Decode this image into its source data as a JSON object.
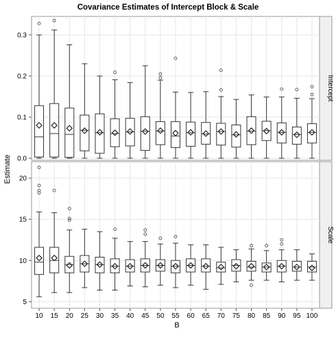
{
  "chart_data": {
    "type": "box",
    "title": "Covariance Estimates of Intercept Block & Scale",
    "xlabel": "B",
    "ylabel": "Estimate",
    "categories": [
      "10",
      "15",
      "20",
      "25",
      "30",
      "35",
      "40",
      "45",
      "50",
      "55",
      "60",
      "65",
      "70",
      "75",
      "80",
      "85",
      "90",
      "95",
      "100"
    ],
    "panels": [
      {
        "name": "Intercept",
        "ylim": [
          -0.005,
          0.345
        ],
        "yticks": [
          0.0,
          0.1,
          0.2,
          0.3
        ],
        "ytick_labels": [
          "0.0",
          "0.1",
          "0.2",
          "0.3"
        ],
        "boxes": [
          {
            "min": 0.0,
            "q1": 0.003,
            "median": 0.052,
            "q3": 0.128,
            "max": 0.3,
            "mean": 0.08,
            "outliers": [
              0.328
            ]
          },
          {
            "min": 0.0,
            "q1": 0.003,
            "median": 0.06,
            "q3": 0.133,
            "max": 0.312,
            "mean": 0.08,
            "outliers": [
              0.335
            ]
          },
          {
            "min": 0.0,
            "q1": 0.002,
            "median": 0.058,
            "q3": 0.122,
            "max": 0.276,
            "mean": 0.073,
            "outliers": []
          },
          {
            "min": 0.0,
            "q1": 0.018,
            "median": 0.068,
            "q3": 0.105,
            "max": 0.23,
            "mean": 0.067,
            "outliers": []
          },
          {
            "min": 0.0,
            "q1": 0.012,
            "median": 0.062,
            "q3": 0.108,
            "max": 0.2,
            "mean": 0.063,
            "outliers": []
          },
          {
            "min": 0.0,
            "q1": 0.028,
            "median": 0.06,
            "q3": 0.096,
            "max": 0.191,
            "mean": 0.062,
            "outliers": [
              0.209
            ]
          },
          {
            "min": 0.0,
            "q1": 0.03,
            "median": 0.064,
            "q3": 0.097,
            "max": 0.184,
            "mean": 0.065,
            "outliers": []
          },
          {
            "min": 0.0,
            "q1": 0.019,
            "median": 0.066,
            "q3": 0.101,
            "max": 0.225,
            "mean": 0.065,
            "outliers": []
          },
          {
            "min": 0.0,
            "q1": 0.033,
            "median": 0.066,
            "q3": 0.089,
            "max": 0.19,
            "mean": 0.067,
            "outliers": [
              0.196,
              0.205
            ]
          },
          {
            "min": 0.0,
            "q1": 0.026,
            "median": 0.054,
            "q3": 0.089,
            "max": 0.161,
            "mean": 0.061,
            "outliers": [
              0.243
            ]
          },
          {
            "min": 0.0,
            "q1": 0.029,
            "median": 0.062,
            "q3": 0.088,
            "max": 0.16,
            "mean": 0.063,
            "outliers": []
          },
          {
            "min": 0.0,
            "q1": 0.034,
            "median": 0.059,
            "q3": 0.087,
            "max": 0.162,
            "mean": 0.06,
            "outliers": []
          },
          {
            "min": 0.0,
            "q1": 0.032,
            "median": 0.065,
            "q3": 0.085,
            "max": 0.15,
            "mean": 0.065,
            "outliers": [
              0.166,
              0.214
            ]
          },
          {
            "min": 0.0,
            "q1": 0.027,
            "median": 0.057,
            "q3": 0.081,
            "max": 0.143,
            "mean": 0.058,
            "outliers": []
          },
          {
            "min": 0.0,
            "q1": 0.033,
            "median": 0.066,
            "q3": 0.101,
            "max": 0.154,
            "mean": 0.067,
            "outliers": []
          },
          {
            "min": 0.0,
            "q1": 0.043,
            "median": 0.067,
            "q3": 0.09,
            "max": 0.149,
            "mean": 0.066,
            "outliers": []
          },
          {
            "min": 0.0,
            "q1": 0.037,
            "median": 0.063,
            "q3": 0.086,
            "max": 0.149,
            "mean": 0.063,
            "outliers": [
              0.168
            ]
          },
          {
            "min": 0.0,
            "q1": 0.034,
            "median": 0.058,
            "q3": 0.076,
            "max": 0.146,
            "mean": 0.057,
            "outliers": [
              0.167
            ]
          },
          {
            "min": 0.0,
            "q1": 0.037,
            "median": 0.063,
            "q3": 0.084,
            "max": 0.145,
            "mean": 0.063,
            "outliers": [
              0.155,
              0.174
            ]
          }
        ]
      },
      {
        "name": "Scale",
        "ylim": [
          4.2,
          22.0
        ],
        "yticks": [
          5,
          10,
          15,
          20
        ],
        "ytick_labels": [
          "5",
          "10",
          "15",
          "20"
        ],
        "boxes": [
          {
            "min": 5.6,
            "q1": 8.3,
            "median": 9.8,
            "q3": 11.6,
            "max": 15.9,
            "mean": 10.3,
            "outliers": [
              18.2,
              18.5,
              19.1,
              21.3
            ]
          },
          {
            "min": 6.1,
            "q1": 8.5,
            "median": 10.0,
            "q3": 11.6,
            "max": 15.8,
            "mean": 10.3,
            "outliers": [
              18.5
            ]
          },
          {
            "min": 6.1,
            "q1": 8.5,
            "median": 9.5,
            "q3": 10.5,
            "max": 13.7,
            "mean": 9.4,
            "outliers": [
              14.9,
              15.1,
              16.3
            ]
          },
          {
            "min": 6.7,
            "q1": 8.6,
            "median": 9.6,
            "q3": 10.6,
            "max": 13.8,
            "mean": 9.6,
            "outliers": []
          },
          {
            "min": 6.4,
            "q1": 8.5,
            "median": 9.5,
            "q3": 10.4,
            "max": 13.5,
            "mean": 9.5,
            "outliers": []
          },
          {
            "min": 6.4,
            "q1": 8.5,
            "median": 9.3,
            "q3": 10.2,
            "max": 12.7,
            "mean": 9.3,
            "outliers": [
              13.8
            ]
          },
          {
            "min": 6.9,
            "q1": 8.6,
            "median": 9.3,
            "q3": 10.1,
            "max": 12.3,
            "mean": 9.3,
            "outliers": []
          },
          {
            "min": 6.8,
            "q1": 8.6,
            "median": 9.4,
            "q3": 10.2,
            "max": 12.3,
            "mean": 9.4,
            "outliers": [
              13.2,
              13.7
            ]
          },
          {
            "min": 7.0,
            "q1": 8.7,
            "median": 9.4,
            "q3": 10.1,
            "max": 12.0,
            "mean": 9.4,
            "outliers": [
              12.7
            ]
          },
          {
            "min": 6.7,
            "q1": 8.5,
            "median": 9.3,
            "q3": 10.0,
            "max": 12.1,
            "mean": 9.3,
            "outliers": [
              12.9
            ]
          },
          {
            "min": 7.0,
            "q1": 8.6,
            "median": 9.4,
            "q3": 10.2,
            "max": 11.9,
            "mean": 9.4,
            "outliers": []
          },
          {
            "min": 6.5,
            "q1": 8.6,
            "median": 9.3,
            "q3": 10.2,
            "max": 11.9,
            "mean": 9.3,
            "outliers": []
          },
          {
            "min": 7.1,
            "q1": 8.6,
            "median": 9.1,
            "q3": 9.8,
            "max": 11.6,
            "mean": 9.2,
            "outliers": []
          },
          {
            "min": 7.4,
            "q1": 8.7,
            "median": 9.4,
            "q3": 10.1,
            "max": 11.3,
            "mean": 9.3,
            "outliers": []
          },
          {
            "min": 7.6,
            "q1": 8.7,
            "median": 9.2,
            "q3": 9.9,
            "max": 11.4,
            "mean": 9.3,
            "outliers": [
              7.0,
              11.8
            ]
          },
          {
            "min": 7.6,
            "q1": 8.6,
            "median": 9.2,
            "q3": 9.7,
            "max": 11.2,
            "mean": 9.2,
            "outliers": [
              11.8
            ]
          },
          {
            "min": 7.4,
            "q1": 8.6,
            "median": 9.3,
            "q3": 10.0,
            "max": 11.3,
            "mean": 9.3,
            "outliers": [
              12.0,
              12.5
            ]
          },
          {
            "min": 7.6,
            "q1": 8.7,
            "median": 9.2,
            "q3": 9.9,
            "max": 11.3,
            "mean": 9.2,
            "outliers": []
          },
          {
            "min": 7.6,
            "q1": 8.6,
            "median": 9.2,
            "q3": 9.9,
            "max": 10.8,
            "mean": 9.1,
            "outliers": []
          }
        ]
      }
    ],
    "grid": true,
    "colors": {
      "box": "#333333",
      "grid": "#e6e6e6",
      "frame": "#999999",
      "strip_bg": "#f0f0f0"
    }
  }
}
